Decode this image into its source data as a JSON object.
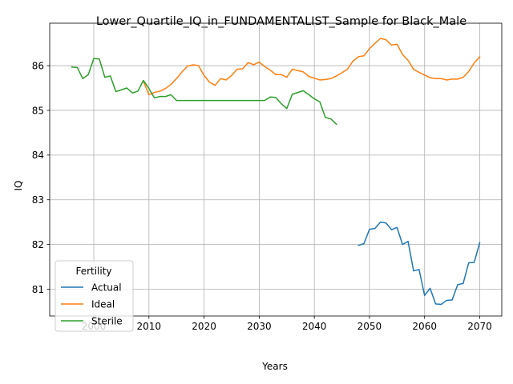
{
  "chart_data": {
    "type": "line",
    "title": "Lower_Quartile_IQ_in_FUNDAMENTALIST_Sample for Black_Male",
    "xlabel": "Years",
    "ylabel": "IQ",
    "xlim": [
      1992,
      2074
    ],
    "ylim": [
      80.4,
      86.95
    ],
    "xticks": [
      2000,
      2010,
      2020,
      2030,
      2040,
      2050,
      2060,
      2070
    ],
    "yticks": [
      81,
      82,
      83,
      84,
      85,
      86
    ],
    "grid": true,
    "legend": {
      "title": "Fertility",
      "placement": "lower-left"
    },
    "series": [
      {
        "name": "Actual",
        "color": "#1f77b4",
        "x": [
          2048,
          2049,
          2050,
          2051,
          2052,
          2053,
          2054,
          2055,
          2056,
          2057,
          2058,
          2059,
          2060,
          2061,
          2062,
          2063,
          2064,
          2065,
          2066,
          2067,
          2068,
          2069,
          2070
        ],
        "y": [
          81.98,
          82.02,
          82.34,
          82.36,
          82.5,
          82.48,
          82.33,
          82.38,
          82.0,
          82.07,
          81.41,
          81.44,
          80.86,
          81.02,
          80.67,
          80.66,
          80.75,
          80.76,
          81.1,
          81.13,
          81.59,
          81.6,
          82.04
        ]
      },
      {
        "name": "Ideal",
        "color": "#ff7f0e",
        "x": [
          2009,
          2010,
          2011,
          2012,
          2013,
          2014,
          2015,
          2016,
          2017,
          2018,
          2019,
          2020,
          2021,
          2022,
          2023,
          2024,
          2025,
          2026,
          2027,
          2028,
          2029,
          2030,
          2031,
          2032,
          2033,
          2034,
          2035,
          2036,
          2037,
          2038,
          2039,
          2040,
          2041,
          2042,
          2043,
          2044,
          2045,
          2046,
          2047,
          2048,
          2049,
          2050,
          2051,
          2052,
          2053,
          2054,
          2055,
          2056,
          2057,
          2058,
          2059,
          2060,
          2061,
          2062,
          2063,
          2064,
          2065,
          2066,
          2067,
          2068,
          2069,
          2070
        ],
        "y": [
          85.65,
          85.35,
          85.4,
          85.43,
          85.49,
          85.58,
          85.71,
          85.86,
          85.99,
          86.02,
          86.0,
          85.78,
          85.63,
          85.56,
          85.71,
          85.68,
          85.78,
          85.92,
          85.93,
          86.07,
          86.02,
          86.08,
          85.98,
          85.9,
          85.8,
          85.8,
          85.74,
          85.92,
          85.89,
          85.86,
          85.76,
          85.72,
          85.68,
          85.69,
          85.71,
          85.77,
          85.84,
          85.92,
          86.1,
          86.2,
          86.22,
          86.38,
          86.5,
          86.61,
          86.58,
          86.46,
          86.48,
          86.25,
          86.12,
          85.92,
          85.85,
          85.79,
          85.73,
          85.71,
          85.71,
          85.68,
          85.7,
          85.7,
          85.74,
          85.87,
          86.06,
          86.2
        ]
      },
      {
        "name": "Sterile",
        "color": "#2ca02c",
        "x": [
          1996,
          1997,
          1998,
          1999,
          2000,
          2001,
          2002,
          2003,
          2004,
          2005,
          2006,
          2007,
          2008,
          2009,
          2010,
          2011,
          2012,
          2013,
          2014,
          2015,
          2016,
          2017,
          2018,
          2019,
          2020,
          2021,
          2022,
          2023,
          2024,
          2025,
          2026,
          2027,
          2028,
          2029,
          2030,
          2031,
          2032,
          2033,
          2034,
          2035,
          2036,
          2037,
          2038,
          2039,
          2040,
          2041,
          2042,
          2043,
          2044
        ],
        "y": [
          85.97,
          85.96,
          85.71,
          85.8,
          86.16,
          86.15,
          85.74,
          85.77,
          85.42,
          85.46,
          85.5,
          85.39,
          85.43,
          85.67,
          85.49,
          85.28,
          85.31,
          85.31,
          85.35,
          85.22,
          85.22,
          85.22,
          85.22,
          85.22,
          85.22,
          85.22,
          85.22,
          85.22,
          85.22,
          85.22,
          85.22,
          85.22,
          85.22,
          85.22,
          85.22,
          85.22,
          85.3,
          85.29,
          85.15,
          85.04,
          85.36,
          85.4,
          85.44,
          85.35,
          85.26,
          85.19,
          84.84,
          84.81,
          84.69
        ]
      }
    ]
  }
}
